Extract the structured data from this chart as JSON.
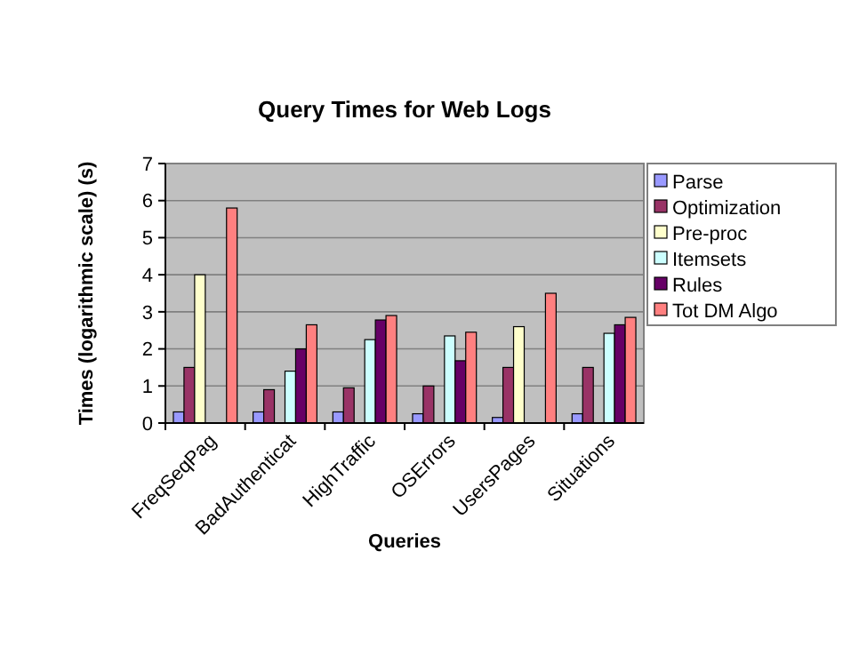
{
  "chart_data": {
    "type": "bar",
    "title": "Query Times for Web Logs",
    "xlabel": "Queries",
    "ylabel": "Times (logarithmic scale) (s)",
    "categories": [
      "FreqSeqPag",
      "BadAuthenticat",
      "HighTraffic",
      "OSErrors",
      "UsersPages",
      "Situations"
    ],
    "series": [
      {
        "name": "Parse",
        "color": "#9999ff",
        "values": [
          0.3,
          0.3,
          0.3,
          0.25,
          0.15,
          0.25
        ]
      },
      {
        "name": "Optimization",
        "color": "#993366",
        "values": [
          1.5,
          0.9,
          0.95,
          1.0,
          1.5,
          1.5
        ]
      },
      {
        "name": "Pre-proc",
        "color": "#ffffcc",
        "values": [
          4.0,
          null,
          null,
          null,
          2.6,
          null
        ]
      },
      {
        "name": "Itemsets",
        "color": "#ccffff",
        "values": [
          null,
          1.4,
          2.25,
          2.35,
          null,
          2.42
        ]
      },
      {
        "name": "Rules",
        "color": "#660066",
        "values": [
          null,
          2.0,
          2.78,
          1.68,
          null,
          2.65
        ]
      },
      {
        "name": "Tot DM Algo",
        "color": "#ff8080",
        "values": [
          5.8,
          2.65,
          2.9,
          2.45,
          3.5,
          2.85
        ]
      }
    ],
    "ylim": [
      0,
      7
    ],
    "yticks": [
      0,
      1,
      2,
      3,
      4,
      5,
      6,
      7
    ],
    "grid": "y",
    "legend": "right"
  }
}
